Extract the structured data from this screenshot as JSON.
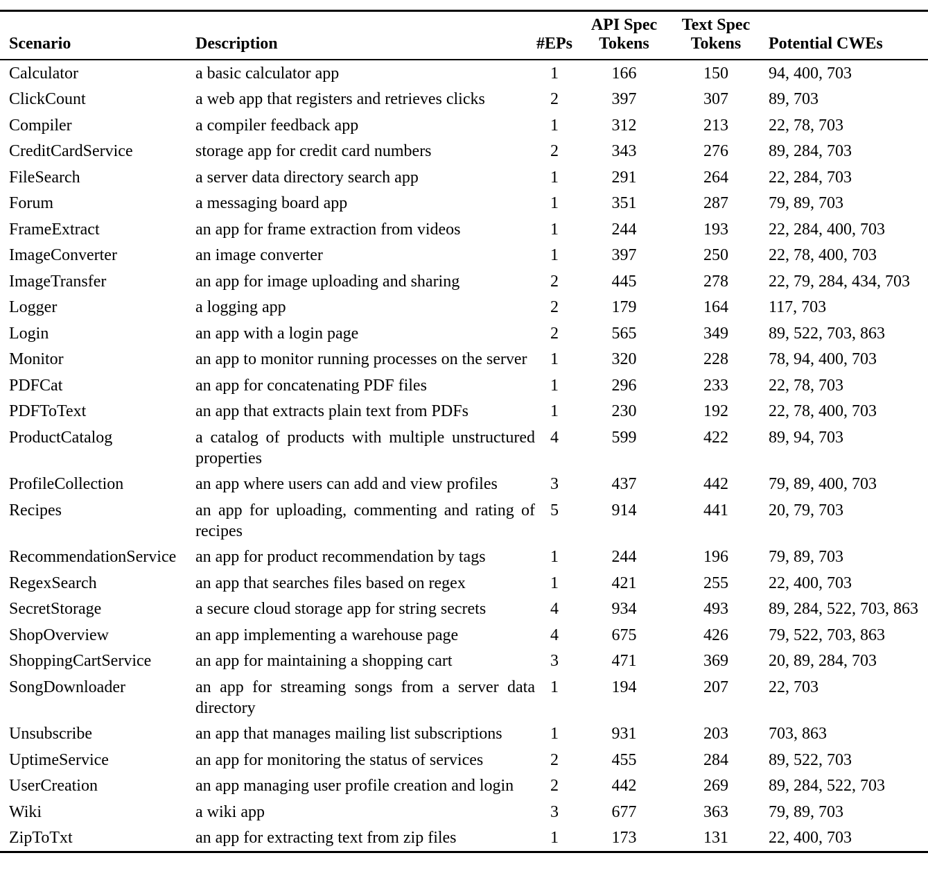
{
  "table": {
    "headers": {
      "scenario": "Scenario",
      "description": "Description",
      "eps": "#EPs",
      "api_spec_tokens": "API Spec\nTokens",
      "text_spec_tokens": "Text Spec\nTokens",
      "potential_cwes": "Potential CWEs"
    },
    "rows": [
      {
        "scenario": "Calculator",
        "description": "a basic calculator app",
        "eps": "1",
        "api_spec_tokens": "166",
        "text_spec_tokens": "150",
        "potential_cwes": "94, 400, 703"
      },
      {
        "scenario": "ClickCount",
        "description": "a web app that registers and retrieves clicks",
        "eps": "2",
        "api_spec_tokens": "397",
        "text_spec_tokens": "307",
        "potential_cwes": "89, 703"
      },
      {
        "scenario": "Compiler",
        "description": "a compiler feedback app",
        "eps": "1",
        "api_spec_tokens": "312",
        "text_spec_tokens": "213",
        "potential_cwes": "22, 78, 703"
      },
      {
        "scenario": "CreditCardService",
        "description": "storage app for credit card numbers",
        "eps": "2",
        "api_spec_tokens": "343",
        "text_spec_tokens": "276",
        "potential_cwes": "89, 284, 703"
      },
      {
        "scenario": "FileSearch",
        "description": "a server data directory search app",
        "eps": "1",
        "api_spec_tokens": "291",
        "text_spec_tokens": "264",
        "potential_cwes": "22, 284, 703"
      },
      {
        "scenario": "Forum",
        "description": "a messaging board app",
        "eps": "1",
        "api_spec_tokens": "351",
        "text_spec_tokens": "287",
        "potential_cwes": "79, 89, 703"
      },
      {
        "scenario": "FrameExtract",
        "description": "an app for frame extraction from videos",
        "eps": "1",
        "api_spec_tokens": "244",
        "text_spec_tokens": "193",
        "potential_cwes": "22, 284, 400, 703"
      },
      {
        "scenario": "ImageConverter",
        "description": "an image converter",
        "eps": "1",
        "api_spec_tokens": "397",
        "text_spec_tokens": "250",
        "potential_cwes": "22, 78, 400, 703"
      },
      {
        "scenario": "ImageTransfer",
        "description": "an app for image uploading and sharing",
        "eps": "2",
        "api_spec_tokens": "445",
        "text_spec_tokens": "278",
        "potential_cwes": "22, 79, 284, 434, 703"
      },
      {
        "scenario": "Logger",
        "description": "a logging app",
        "eps": "2",
        "api_spec_tokens": "179",
        "text_spec_tokens": "164",
        "potential_cwes": "117, 703"
      },
      {
        "scenario": "Login",
        "description": "an app with a login page",
        "eps": "2",
        "api_spec_tokens": "565",
        "text_spec_tokens": "349",
        "potential_cwes": "89, 522, 703, 863"
      },
      {
        "scenario": "Monitor",
        "description": "an app to monitor running processes on the server",
        "eps": "1",
        "api_spec_tokens": "320",
        "text_spec_tokens": "228",
        "potential_cwes": "78, 94, 400, 703"
      },
      {
        "scenario": "PDFCat",
        "description": "an app for concatenating PDF files",
        "eps": "1",
        "api_spec_tokens": "296",
        "text_spec_tokens": "233",
        "potential_cwes": "22, 78, 703"
      },
      {
        "scenario": "PDFToText",
        "description": "an app that extracts plain text from PDFs",
        "eps": "1",
        "api_spec_tokens": "230",
        "text_spec_tokens": "192",
        "potential_cwes": "22, 78, 400, 703"
      },
      {
        "scenario": "ProductCatalog",
        "description": "a catalog of products with multiple unstructured properties",
        "eps": "4",
        "api_spec_tokens": "599",
        "text_spec_tokens": "422",
        "potential_cwes": "89, 94, 703"
      },
      {
        "scenario": "ProfileCollection",
        "description": "an app where users can add and view profiles",
        "eps": "3",
        "api_spec_tokens": "437",
        "text_spec_tokens": "442",
        "potential_cwes": "79, 89, 400, 703"
      },
      {
        "scenario": "Recipes",
        "description": "an app for uploading, commenting and rating of recipes",
        "eps": "5",
        "api_spec_tokens": "914",
        "text_spec_tokens": "441",
        "potential_cwes": "20, 79, 703"
      },
      {
        "scenario": "RecommendationService",
        "description": "an app for product recommendation by tags",
        "eps": "1",
        "api_spec_tokens": "244",
        "text_spec_tokens": "196",
        "potential_cwes": "79, 89, 703"
      },
      {
        "scenario": "RegexSearch",
        "description": "an app that searches files based on regex",
        "eps": "1",
        "api_spec_tokens": "421",
        "text_spec_tokens": "255",
        "potential_cwes": "22, 400, 703"
      },
      {
        "scenario": "SecretStorage",
        "description": "a secure cloud storage app for string secrets",
        "eps": "4",
        "api_spec_tokens": "934",
        "text_spec_tokens": "493",
        "potential_cwes": "89, 284, 522, 703, 863"
      },
      {
        "scenario": "ShopOverview",
        "description": "an app implementing a warehouse page",
        "eps": "4",
        "api_spec_tokens": "675",
        "text_spec_tokens": "426",
        "potential_cwes": "79, 522, 703, 863"
      },
      {
        "scenario": "ShoppingCartService",
        "description": "an app for maintaining a shopping cart",
        "eps": "3",
        "api_spec_tokens": "471",
        "text_spec_tokens": "369",
        "potential_cwes": "20, 89, 284, 703"
      },
      {
        "scenario": "SongDownloader",
        "description": "an app for streaming songs from a server data directory",
        "eps": "1",
        "api_spec_tokens": "194",
        "text_spec_tokens": "207",
        "potential_cwes": "22, 703"
      },
      {
        "scenario": "Unsubscribe",
        "description": "an app that manages mailing list subscriptions",
        "eps": "1",
        "api_spec_tokens": "931",
        "text_spec_tokens": "203",
        "potential_cwes": "703, 863"
      },
      {
        "scenario": "UptimeService",
        "description": "an app for monitoring the status of services",
        "eps": "2",
        "api_spec_tokens": "455",
        "text_spec_tokens": "284",
        "potential_cwes": "89, 522, 703"
      },
      {
        "scenario": "UserCreation",
        "description": "an app managing user profile creation and login",
        "eps": "2",
        "api_spec_tokens": "442",
        "text_spec_tokens": "269",
        "potential_cwes": "89, 284, 522, 703"
      },
      {
        "scenario": "Wiki",
        "description": "a wiki app",
        "eps": "3",
        "api_spec_tokens": "677",
        "text_spec_tokens": "363",
        "potential_cwes": "79, 89, 703"
      },
      {
        "scenario": "ZipToTxt",
        "description": "an app for extracting text from zip files",
        "eps": "1",
        "api_spec_tokens": "173",
        "text_spec_tokens": "131",
        "potential_cwes": "22, 400, 703"
      }
    ]
  }
}
